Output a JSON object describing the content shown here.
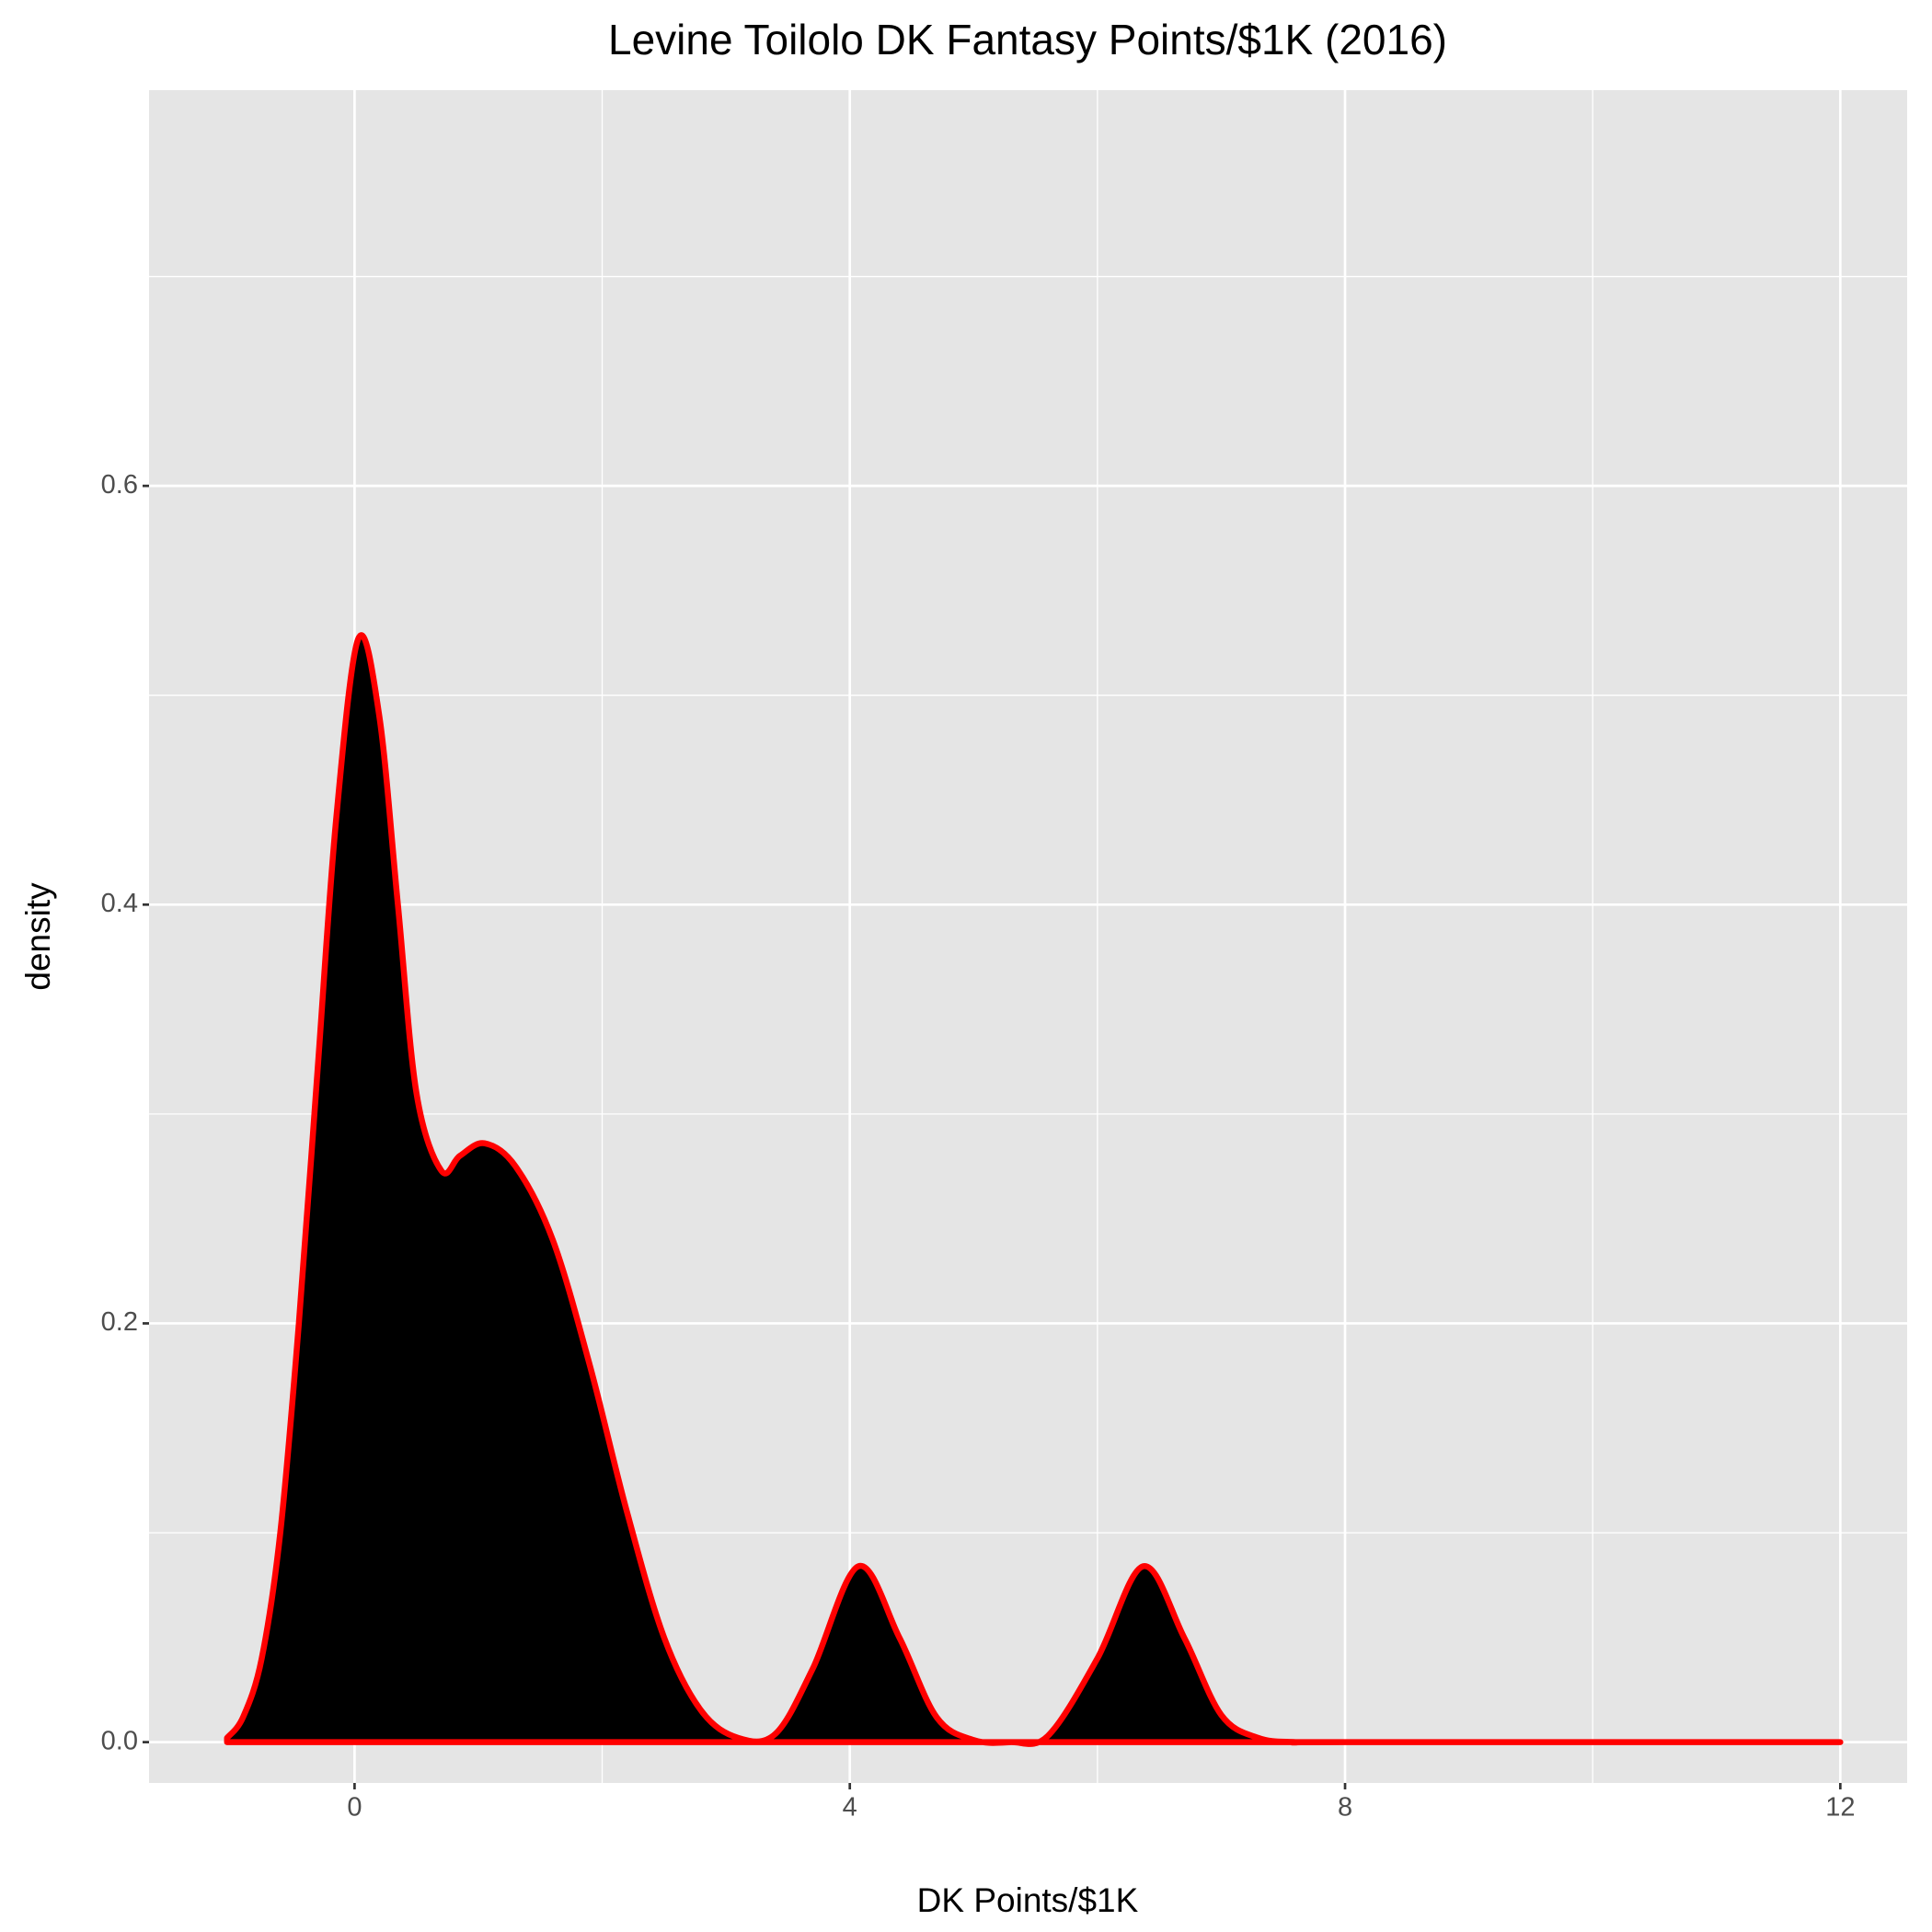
{
  "chart_data": {
    "type": "density",
    "title": "Levine Toilolo DK Fantasy Points/$1K (2016)",
    "x_label": "DK Points/$1K",
    "y_label": "density",
    "x": [
      -1.03,
      -0.9,
      -0.75,
      -0.6,
      -0.45,
      -0.3,
      -0.15,
      0.03,
      0.2,
      0.35,
      0.5,
      0.7,
      0.85,
      1.05,
      1.3,
      1.6,
      1.9,
      2.2,
      2.5,
      2.8,
      3.1,
      3.4,
      3.7,
      4.07,
      4.4,
      4.7,
      5.0,
      5.3,
      5.6,
      6.0,
      6.37,
      6.7,
      7.0,
      7.3,
      7.6,
      8,
      12
    ],
    "values": [
      0.002,
      0.012,
      0.04,
      0.1,
      0.2,
      0.32,
      0.44,
      0.527,
      0.49,
      0.4,
      0.31,
      0.273,
      0.28,
      0.286,
      0.275,
      0.24,
      0.18,
      0.11,
      0.05,
      0.015,
      0.002,
      0.004,
      0.035,
      0.084,
      0.05,
      0.012,
      0.001,
      0,
      0.003,
      0.04,
      0.084,
      0.05,
      0.013,
      0.002,
      0,
      0,
      0
    ],
    "fill_color": "#000000",
    "line_color": "#ff0000",
    "xlim": [
      -1.66,
      12.54
    ],
    "ylim": [
      -0.0195,
      0.789
    ],
    "xticks": [
      0,
      4,
      8,
      12
    ],
    "yticks": [
      {
        "value": 0,
        "label": "0.0"
      },
      0.2,
      0.4,
      0.6
    ],
    "grid": true
  }
}
